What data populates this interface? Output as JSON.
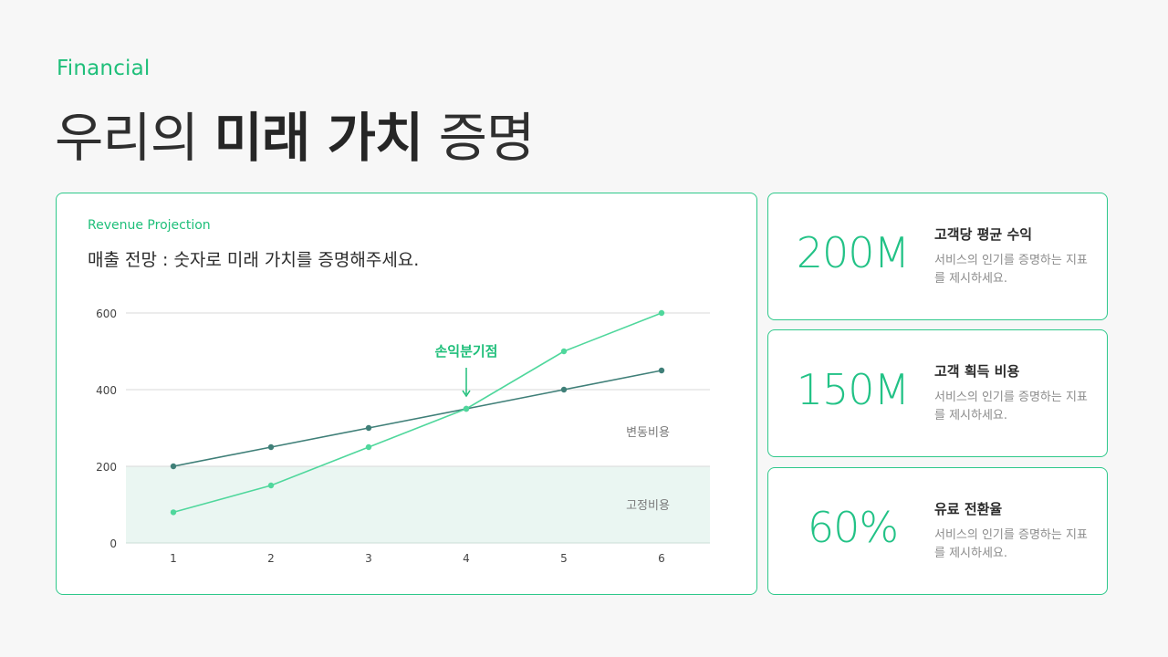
{
  "header": {
    "eyebrow": "Financial",
    "title_part1": "우리의 ",
    "title_bold": "미래 가치",
    "title_part2": " 증명"
  },
  "chart_card": {
    "eyebrow": "Revenue Projection",
    "title": "매출 전망 : 숫자로 미래 가치를 증명해주세요."
  },
  "chart_data": {
    "type": "line",
    "x": [
      1,
      2,
      3,
      4,
      5,
      6
    ],
    "series": [
      {
        "name": "",
        "values": [
          200,
          250,
          300,
          350,
          400,
          450
        ],
        "color": "#3f7f78"
      },
      {
        "name": "",
        "values": [
          80,
          150,
          250,
          350,
          500,
          600
        ],
        "color": "#4fd79c"
      }
    ],
    "ylim": [
      0,
      600
    ],
    "yticks": [
      0,
      200,
      400,
      600
    ],
    "grid": true,
    "fixed_cost_band": {
      "from": 0,
      "to": 200,
      "label": "고정비용",
      "color": "#eaf6f2"
    },
    "variable_cost_label": "변동비용",
    "annotation": {
      "text": "손익분기점",
      "x": 4,
      "y": 350,
      "color": "#1fbf7a"
    }
  },
  "kpis": [
    {
      "value": "200M",
      "label": "고객당 평균 수익",
      "desc": "서비스의 인기를 증명하는 지표를 제시하세요."
    },
    {
      "value": "150M",
      "label": "고객 획득 비용",
      "desc": "서비스의 인기를 증명하는 지표를 제시하세요."
    },
    {
      "value": "60%",
      "label": "유료 전환율",
      "desc": "서비스의 인기를 증명하는 지표를 제시하세요."
    }
  ],
  "colors": {
    "accent": "#22c286",
    "border": "#2ec88a",
    "background": "#f7f7f7"
  }
}
